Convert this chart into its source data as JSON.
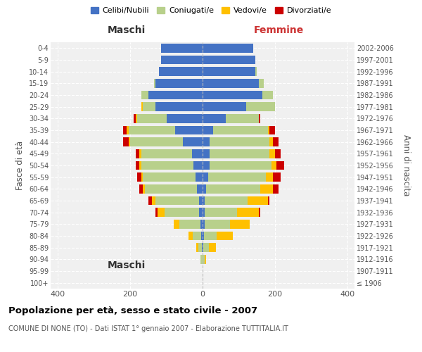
{
  "age_groups": [
    "100+",
    "95-99",
    "90-94",
    "85-89",
    "80-84",
    "75-79",
    "70-74",
    "65-69",
    "60-64",
    "55-59",
    "50-54",
    "45-49",
    "40-44",
    "35-39",
    "30-34",
    "25-29",
    "20-24",
    "15-19",
    "10-14",
    "5-9",
    "0-4"
  ],
  "birth_years": [
    "≤ 1906",
    "1907-1911",
    "1912-1916",
    "1917-1921",
    "1922-1926",
    "1927-1931",
    "1932-1936",
    "1937-1941",
    "1942-1946",
    "1947-1951",
    "1952-1956",
    "1957-1961",
    "1962-1966",
    "1967-1971",
    "1972-1976",
    "1977-1981",
    "1982-1986",
    "1987-1991",
    "1992-1996",
    "1997-2001",
    "2002-2006"
  ],
  "colors": {
    "celibi": "#4472c4",
    "coniugati": "#b8d08b",
    "vedovi": "#ffc000",
    "divorziati": "#cc0000"
  },
  "maschi": {
    "celibi": [
      0,
      0,
      0,
      2,
      3,
      5,
      10,
      10,
      15,
      20,
      25,
      30,
      55,
      75,
      100,
      130,
      150,
      130,
      120,
      115,
      115
    ],
    "coniugati": [
      0,
      0,
      5,
      10,
      25,
      60,
      95,
      120,
      145,
      145,
      145,
      140,
      145,
      130,
      80,
      35,
      20,
      5,
      0,
      0,
      0
    ],
    "vedovi": [
      0,
      0,
      0,
      5,
      10,
      15,
      20,
      10,
      5,
      5,
      5,
      5,
      5,
      5,
      5,
      5,
      0,
      0,
      0,
      0,
      0
    ],
    "divorziati": [
      0,
      0,
      0,
      0,
      0,
      0,
      5,
      10,
      10,
      10,
      10,
      10,
      15,
      10,
      5,
      0,
      0,
      0,
      0,
      0,
      0
    ]
  },
  "femmine": {
    "celibi": [
      0,
      0,
      0,
      2,
      3,
      5,
      5,
      5,
      10,
      15,
      20,
      20,
      20,
      30,
      65,
      120,
      165,
      155,
      145,
      145,
      140
    ],
    "coniugati": [
      0,
      0,
      5,
      15,
      35,
      70,
      90,
      120,
      150,
      160,
      170,
      165,
      165,
      150,
      90,
      80,
      30,
      15,
      5,
      0,
      0
    ],
    "vedovi": [
      0,
      0,
      5,
      20,
      45,
      55,
      60,
      55,
      35,
      20,
      15,
      15,
      10,
      5,
      0,
      0,
      0,
      0,
      0,
      0,
      0
    ],
    "divorziati": [
      0,
      0,
      0,
      0,
      0,
      0,
      5,
      5,
      15,
      20,
      20,
      15,
      15,
      15,
      5,
      0,
      0,
      0,
      0,
      0,
      0
    ]
  },
  "title": "Popolazione per età, sesso e stato civile - 2007",
  "subtitle": "COMUNE DI NONE (TO) - Dati ISTAT 1° gennaio 2007 - Elaborazione TUTTITALIA.IT",
  "ylabel_left": "Fasce di età",
  "ylabel_right": "Anni di nascita",
  "xlabel_left": "Maschi",
  "xlabel_right": "Femmine",
  "xlim": 420,
  "legend_labels": [
    "Celibi/Nubili",
    "Coniugati/e",
    "Vedovi/e",
    "Divorziati/e"
  ],
  "background_color": "#f0f0f0"
}
